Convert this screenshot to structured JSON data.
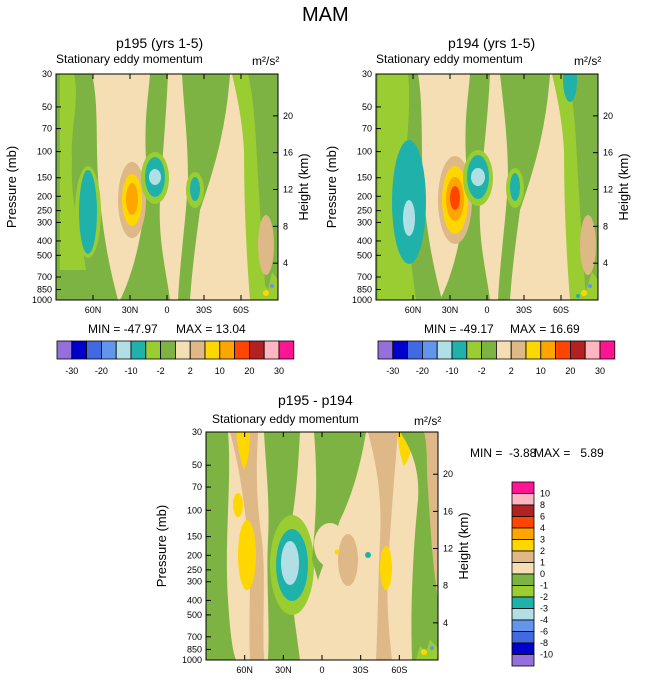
{
  "figure_title": "MAM",
  "colors": {
    "palette": [
      "#9370DB",
      "#0000CD",
      "#4169E1",
      "#6495ED",
      "#B0E0E6",
      "#20B2AA",
      "#9ACD32",
      "#7CB342",
      "#F5DEB3",
      "#DEB887",
      "#FFD700",
      "#FFA500",
      "#FF4500",
      "#B22222",
      "#FFB6C1",
      "#FF1493"
    ]
  },
  "chart_data": [
    {
      "type": "heatmap",
      "title": "p195 (yrs 1-5)",
      "subtitle": "Stationary eddy momentum",
      "units": "m²/s²",
      "ylabel": "Pressure (mb)",
      "ylabel_right": "Height (km)",
      "pressure_ticks": [
        "30",
        "50",
        "70",
        "100",
        "150",
        "200",
        "250",
        "300",
        "400",
        "500",
        "700",
        "850",
        "1000"
      ],
      "pressure_values": [
        30,
        50,
        70,
        100,
        150,
        200,
        250,
        300,
        400,
        500,
        700,
        850,
        1000
      ],
      "height_ticks": [
        "20",
        "16",
        "12",
        "8",
        "4"
      ],
      "height_values": [
        20,
        16,
        12,
        8,
        4
      ],
      "lat_ticks": [
        "60N",
        "30N",
        "0",
        "30S",
        "60S"
      ],
      "lat_values": [
        60,
        30,
        0,
        -30,
        -60
      ],
      "xlim": [
        90,
        -90
      ],
      "ylim": [
        1000,
        30
      ],
      "min_label": "MIN = -47.97",
      "max_label": "MAX = 13.04",
      "min": -47.97,
      "max": 13.04
    },
    {
      "type": "heatmap",
      "title": "p194 (yrs 1-5)",
      "subtitle": "Stationary eddy momentum",
      "units": "m²/s²",
      "ylabel": "Pressure (mb)",
      "ylabel_right": "Height (km)",
      "pressure_ticks": [
        "30",
        "50",
        "70",
        "100",
        "150",
        "200",
        "250",
        "300",
        "400",
        "500",
        "700",
        "850",
        "1000"
      ],
      "pressure_values": [
        30,
        50,
        70,
        100,
        150,
        200,
        250,
        300,
        400,
        500,
        700,
        850,
        1000
      ],
      "height_ticks": [
        "20",
        "16",
        "12",
        "8",
        "4"
      ],
      "height_values": [
        20,
        16,
        12,
        8,
        4
      ],
      "lat_ticks": [
        "60N",
        "30N",
        "0",
        "30S",
        "60S"
      ],
      "lat_values": [
        60,
        30,
        0,
        -30,
        -60
      ],
      "xlim": [
        90,
        -90
      ],
      "ylim": [
        1000,
        30
      ],
      "min_label": "MIN = -49.17",
      "max_label": "MAX = 16.69",
      "min": -49.17,
      "max": 16.69
    },
    {
      "type": "heatmap",
      "title": "p195 - p194",
      "subtitle": "Stationary eddy momentum",
      "units": "m²/s²",
      "ylabel": "Pressure (mb)",
      "ylabel_right": "Height (km)",
      "pressure_ticks": [
        "30",
        "50",
        "70",
        "100",
        "150",
        "200",
        "250",
        "300",
        "400",
        "500",
        "700",
        "850",
        "1000"
      ],
      "pressure_values": [
        30,
        50,
        70,
        100,
        150,
        200,
        250,
        300,
        400,
        500,
        700,
        850,
        1000
      ],
      "height_ticks": [
        "20",
        "16",
        "12",
        "8",
        "4"
      ],
      "height_values": [
        20,
        16,
        12,
        8,
        4
      ],
      "lat_ticks": [
        "60N",
        "30N",
        "0",
        "30S",
        "60S"
      ],
      "lat_values": [
        60,
        30,
        0,
        -30,
        -60
      ],
      "xlim": [
        90,
        -90
      ],
      "ylim": [
        1000,
        30
      ],
      "min_label": "MIN =  -3.88",
      "max_label": "MAX =   5.89",
      "min": -3.88,
      "max": 5.89
    }
  ],
  "colorbar_top": {
    "labels": [
      "-30",
      "-20",
      "-10",
      "-2",
      "2",
      "10",
      "20",
      "30"
    ]
  },
  "colorbar_diff": {
    "labels": [
      "10",
      "8",
      "6",
      "4",
      "3",
      "2",
      "1",
      "0",
      "-1",
      "-2",
      "-3",
      "-4",
      "-6",
      "-8",
      "-10"
    ]
  }
}
